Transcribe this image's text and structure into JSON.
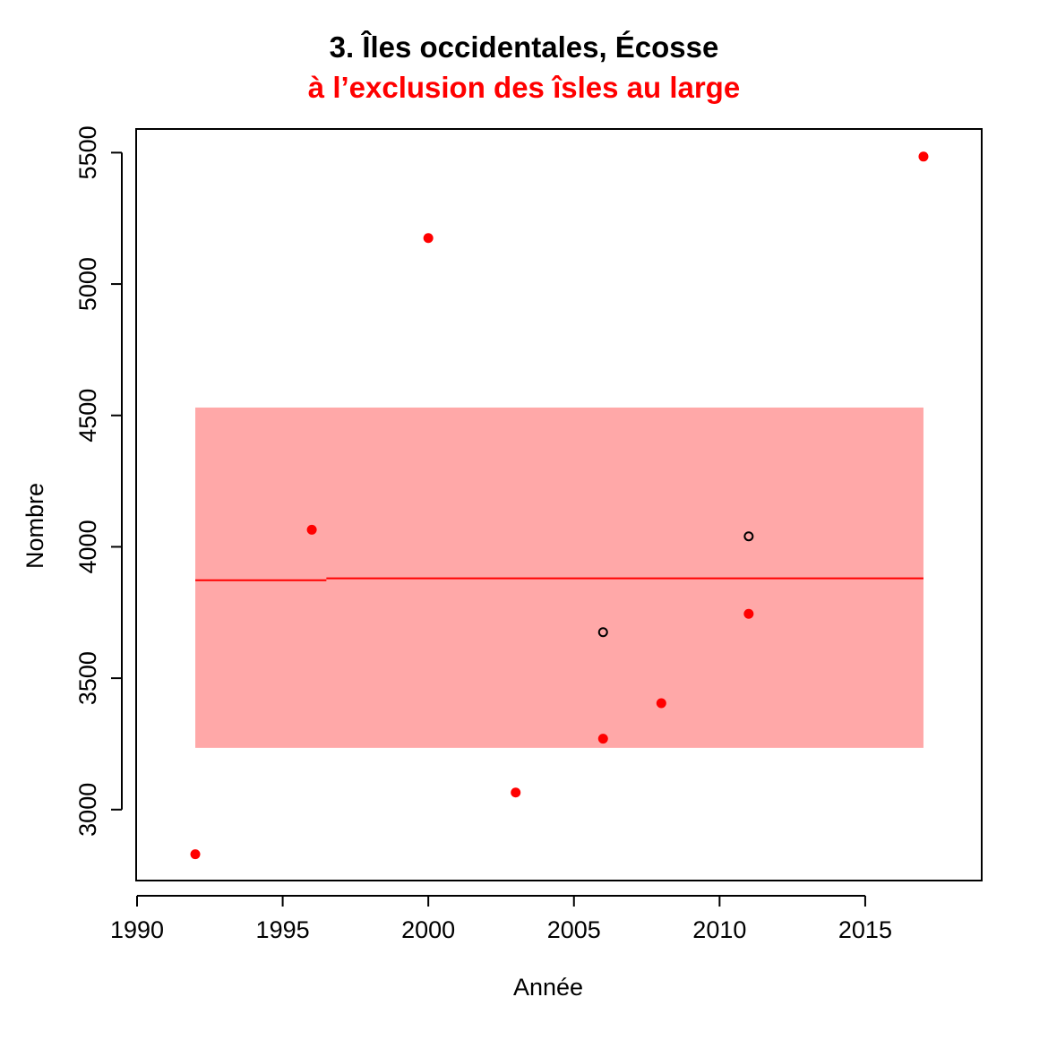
{
  "chart_data": {
    "type": "scatter",
    "title": "3. Îles occidentales, Écosse",
    "subtitle": "à l’exclusion des îsles au large",
    "xlabel": "Année",
    "ylabel": "Nombre",
    "xlim": [
      1990,
      2019
    ],
    "ylim": [
      2730,
      5590
    ],
    "x_ticks": [
      1990,
      1995,
      2000,
      2005,
      2010,
      2015
    ],
    "y_ticks": [
      3000,
      3500,
      4000,
      4500,
      5000,
      5500
    ],
    "grid": false,
    "series": [
      {
        "marker": "filled-circle",
        "color": "#ff0000",
        "points": [
          {
            "x": 1992,
            "y": 2830
          },
          {
            "x": 1996,
            "y": 4065
          },
          {
            "x": 2000,
            "y": 5175
          },
          {
            "x": 2003,
            "y": 3065
          },
          {
            "x": 2006,
            "y": 3270
          },
          {
            "x": 2008,
            "y": 3405
          },
          {
            "x": 2011,
            "y": 3745
          },
          {
            "x": 2017,
            "y": 5485
          }
        ]
      },
      {
        "marker": "open-circle",
        "color": "#000000",
        "points": [
          {
            "x": 2006,
            "y": 3675
          },
          {
            "x": 2011,
            "y": 4040
          }
        ]
      }
    ],
    "band": {
      "x_start": 1992,
      "x_end": 2017,
      "y_low": 3235,
      "y_high": 4530,
      "color": "#ffa8a8"
    },
    "trend_line": {
      "color": "#ff0000",
      "segments": [
        {
          "x1": 1992,
          "x2": 1996.5,
          "y": 3873
        },
        {
          "x1": 1996.5,
          "x2": 2017,
          "y": 3880
        }
      ]
    }
  }
}
